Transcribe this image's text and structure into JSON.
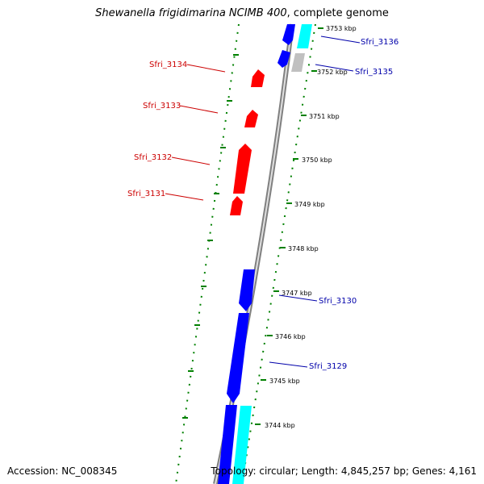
{
  "title": {
    "organism": "Shewanella frigidimarina NCIMB 400",
    "suffix": ", complete genome"
  },
  "footer": {
    "accession": "Accession: NC_008345",
    "summary": "Topology: circular; Length: 4,845,257 bp; Genes: 4,161"
  },
  "colors": {
    "reverse_strand": "#ff0000",
    "forward_strand": "#0000ff",
    "cyan": "#00ffff",
    "gray": "#c0c0c0",
    "backbone": "#808080",
    "ticks": "#008000",
    "forward_label": "#0000aa",
    "reverse_label": "#cc0000"
  },
  "ticks": [
    "3753 kbp",
    "3752 kbp",
    "3751 kbp",
    "3750 kbp",
    "3749 kbp",
    "3748 kbp",
    "3747 kbp",
    "3746 kbp",
    "3745 kbp",
    "3744 kbp"
  ],
  "gene_labels": {
    "sfri_3136": "Sfri_3136",
    "sfri_3135": "Sfri_3135",
    "sfri_3134": "Sfri_3134",
    "sfri_3133": "Sfri_3133",
    "sfri_3132": "Sfri_3132",
    "sfri_3131": "Sfri_3131",
    "sfri_3130": "Sfri_3130",
    "sfri_3129": "Sfri_3129"
  }
}
